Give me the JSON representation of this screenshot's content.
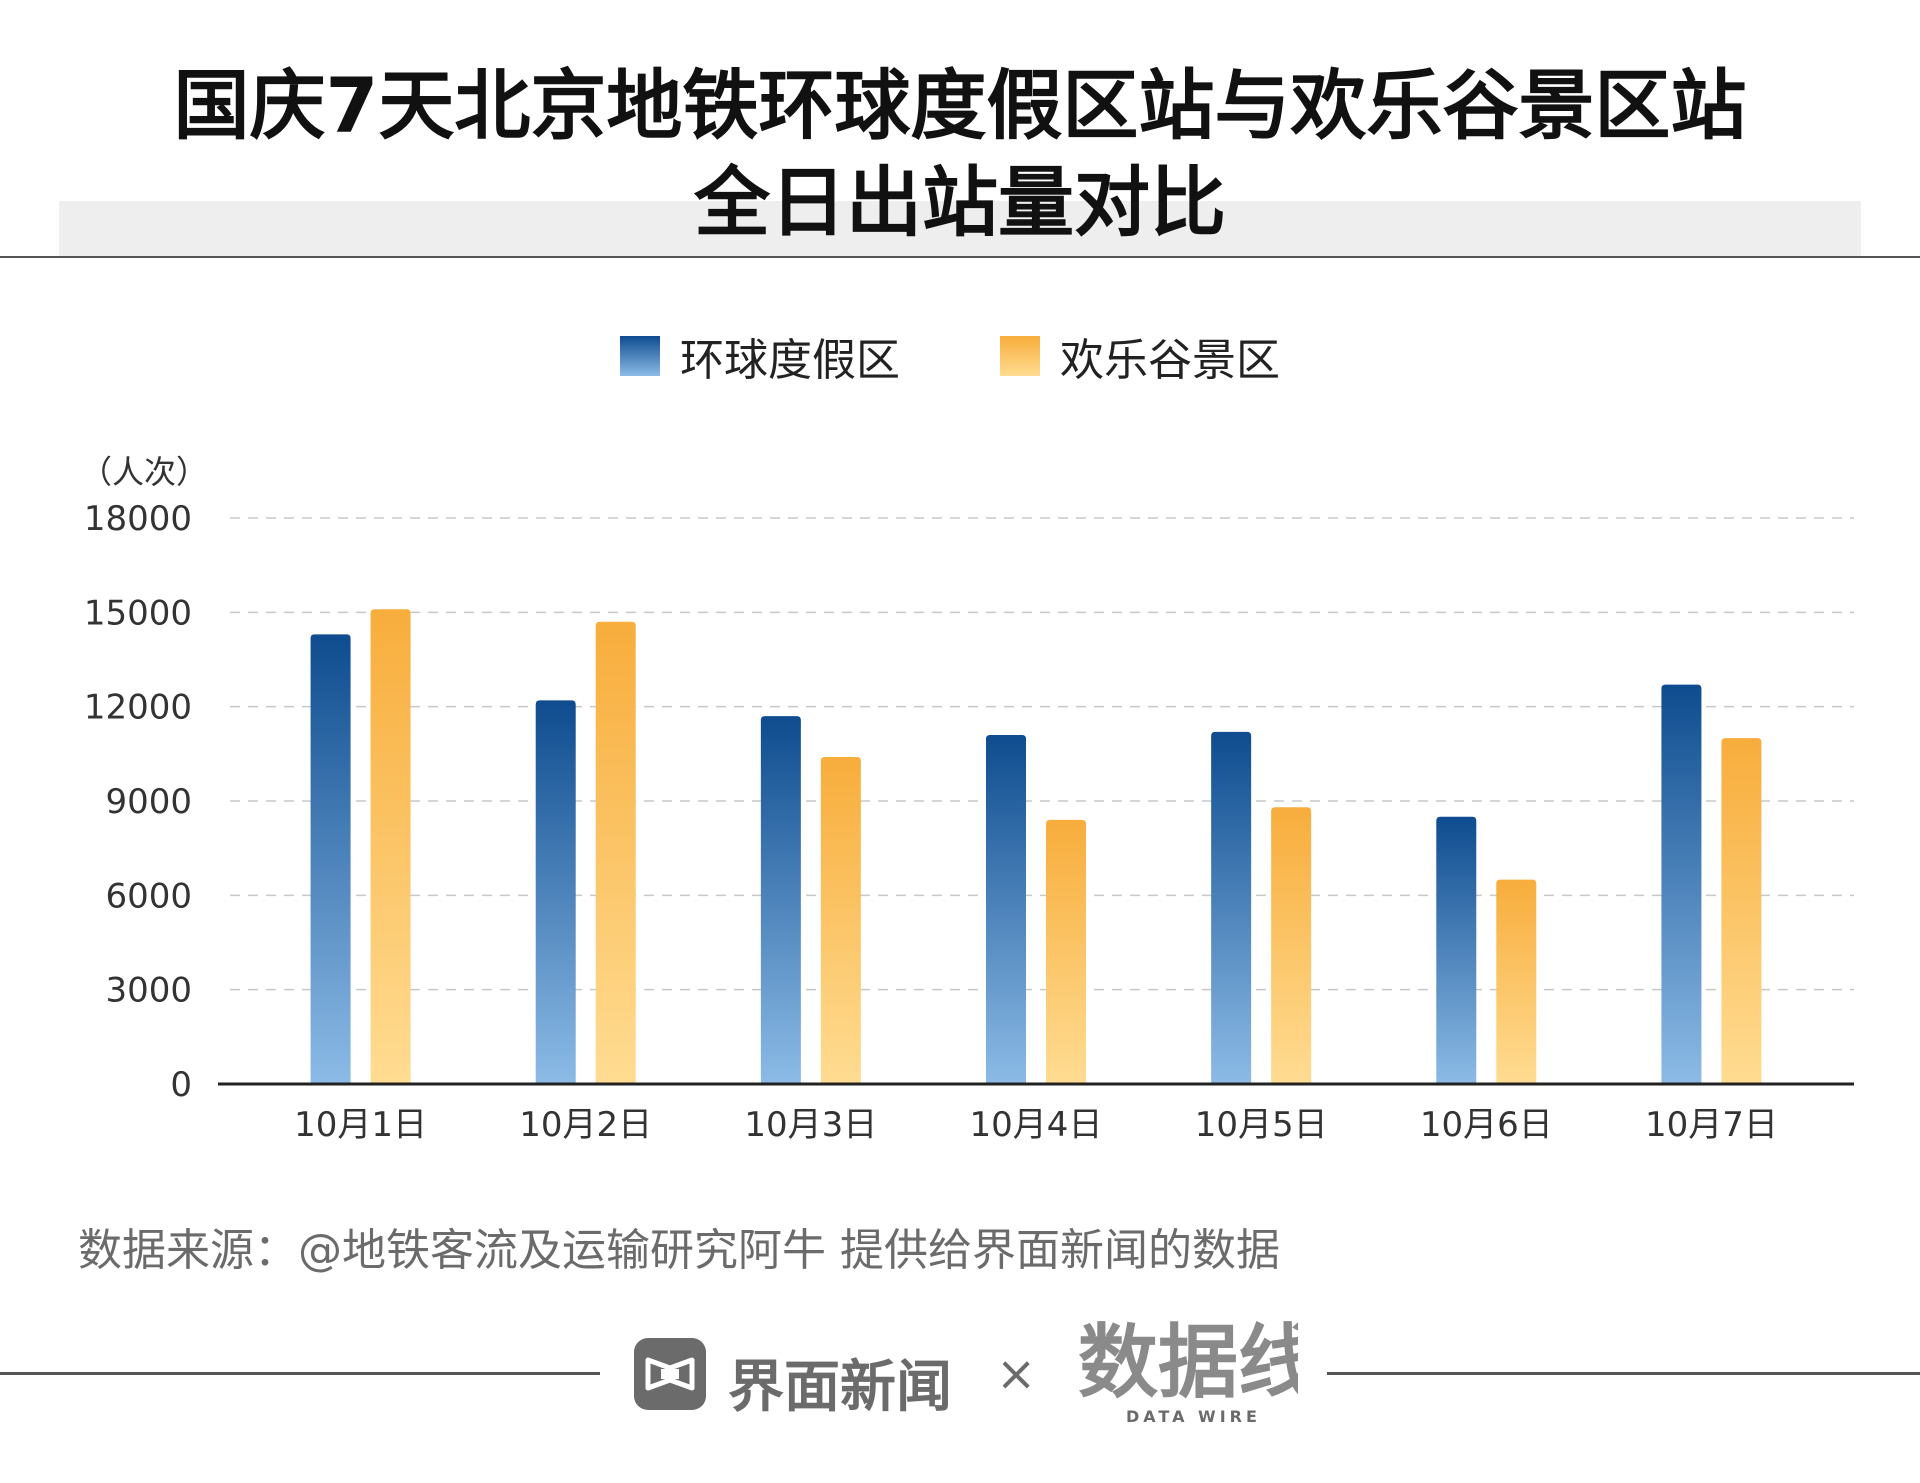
{
  "title_lines": [
    "国庆7天北京地铁环球度假区站与欢乐谷景区站",
    "全日出站量对比"
  ],
  "legend": [
    {
      "label": "环球度假区",
      "color_top": "#0e4c8f",
      "color_bottom": "#8cbbe6"
    },
    {
      "label": "欢乐谷景区",
      "color_top": "#f8ad3c",
      "color_bottom": "#ffdc92"
    }
  ],
  "chart_data": {
    "type": "bar",
    "title": "国庆7天北京地铁环球度假区站与欢乐谷景区站全日出站量对比",
    "unit_label": "（人次）",
    "categories": [
      "10月1日",
      "10月2日",
      "10月3日",
      "10月4日",
      "10月5日",
      "10月6日",
      "10月7日"
    ],
    "series": [
      {
        "name": "环球度假区",
        "values": [
          14300,
          12200,
          11700,
          11100,
          11200,
          8500,
          12700
        ]
      },
      {
        "name": "欢乐谷景区",
        "values": [
          15100,
          14700,
          10400,
          8400,
          8800,
          6500,
          11000
        ]
      }
    ],
    "ylim": [
      0,
      18000
    ],
    "yticks": [
      "0",
      "3000",
      "6000",
      "9000",
      "12000",
      "15000",
      "18000"
    ],
    "grid": "dashed-horizontal",
    "legend_position": "top-center"
  },
  "source": "数据来源：@地铁客流及运输研究阿牛 提供给界面新闻的数据",
  "footer": {
    "brand_name": "界面新闻",
    "times_sign": "×",
    "partner_logo_text": "数据线",
    "partner_logo_sub": "DATA WIRE"
  }
}
